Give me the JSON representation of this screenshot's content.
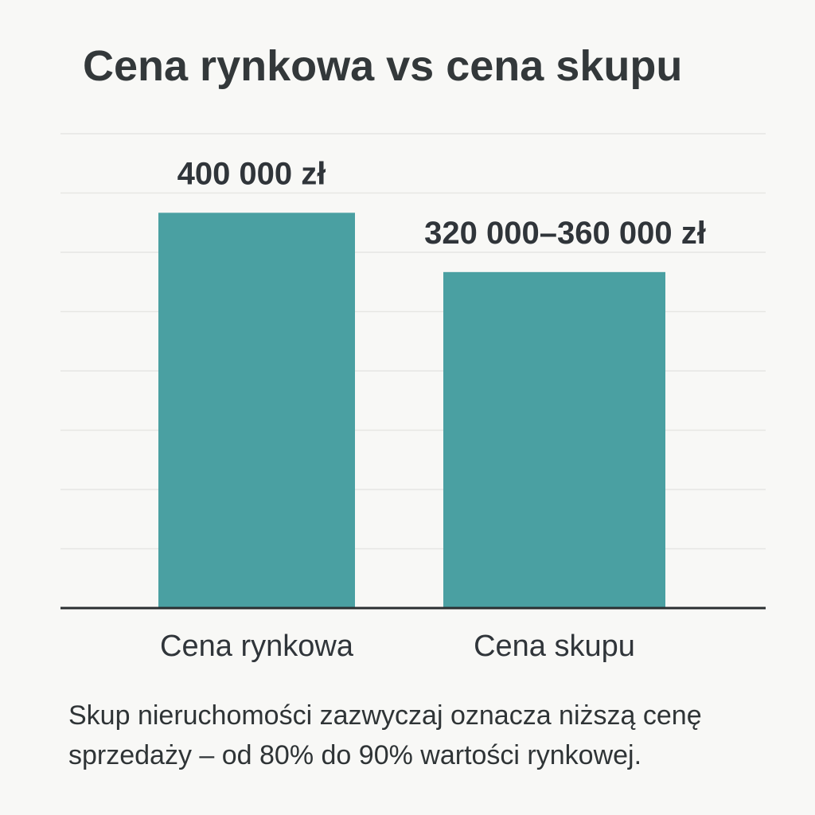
{
  "chart_data": {
    "type": "bar",
    "title": "Cena rynkowa vs cena skupu",
    "categories": [
      "Cena rynkowa",
      "Cena skupu"
    ],
    "values": [
      400000,
      340000
    ],
    "ranges": [
      null,
      [
        320000,
        360000
      ]
    ],
    "data_labels": [
      "400 000 zł",
      "320 000–360 000 zł"
    ],
    "xlabel": "",
    "ylabel": "",
    "y_axis_visible": false,
    "grid": true,
    "bar_color": "#4aa0a2",
    "ylim": [
      0,
      480000
    ]
  },
  "caption": "Skup nieruchomości zazwyczaj oznacza niższą cenę sprzedaży – od 80% do 90% wartości rynkowej."
}
